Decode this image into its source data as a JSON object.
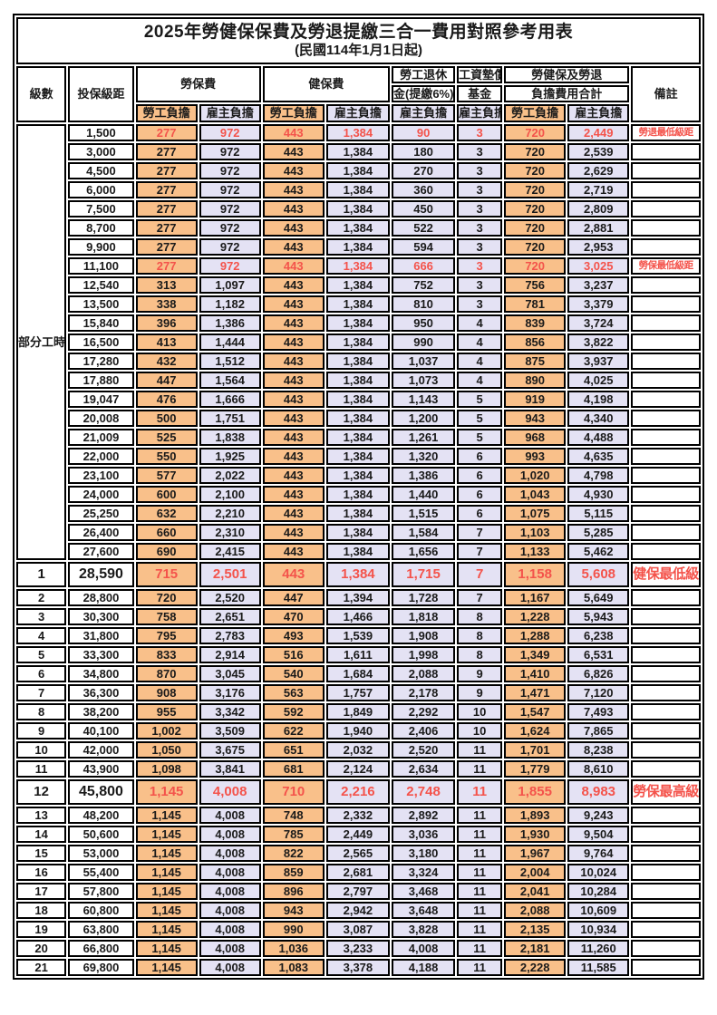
{
  "title": "2025年勞健保保費及勞退提繳三合一費用對照參考用表",
  "subtitle": "(民國114年1月1日起)",
  "colors": {
    "worker_bg": "#F9C08A",
    "employer_bg": "#E4E2F4",
    "highlight_red": "#F4534B",
    "border": "#000000"
  },
  "header": {
    "level": "級數",
    "bracket": "投保級距",
    "labor": "勞保費",
    "health": "健保費",
    "pension_l1": "勞工退休",
    "pension_l2": "金(提繳6%)",
    "fund_l1": "工資墊償",
    "fund_l2": "基金",
    "total_l1": "勞健保及勞退",
    "total_l2": "負擔費用合計",
    "remark": "備註",
    "worker": "勞工負擔",
    "employer": "雇主負擔"
  },
  "part_time": {
    "label": "部分工時",
    "span": 23
  },
  "rows": [
    {
      "level": "",
      "bracket": "1,500",
      "values": [
        "277",
        "972",
        "443",
        "1,384",
        "90",
        "3",
        "720",
        "2,449"
      ],
      "remark": "勞退最低級距",
      "red": true,
      "emph": false
    },
    {
      "level": "",
      "bracket": "3,000",
      "values": [
        "277",
        "972",
        "443",
        "1,384",
        "180",
        "3",
        "720",
        "2,539"
      ],
      "remark": "",
      "red": false,
      "emph": false
    },
    {
      "level": "",
      "bracket": "4,500",
      "values": [
        "277",
        "972",
        "443",
        "1,384",
        "270",
        "3",
        "720",
        "2,629"
      ],
      "remark": "",
      "red": false,
      "emph": false
    },
    {
      "level": "",
      "bracket": "6,000",
      "values": [
        "277",
        "972",
        "443",
        "1,384",
        "360",
        "3",
        "720",
        "2,719"
      ],
      "remark": "",
      "red": false,
      "emph": false
    },
    {
      "level": "",
      "bracket": "7,500",
      "values": [
        "277",
        "972",
        "443",
        "1,384",
        "450",
        "3",
        "720",
        "2,809"
      ],
      "remark": "",
      "red": false,
      "emph": false
    },
    {
      "level": "",
      "bracket": "8,700",
      "values": [
        "277",
        "972",
        "443",
        "1,384",
        "522",
        "3",
        "720",
        "2,881"
      ],
      "remark": "",
      "red": false,
      "emph": false
    },
    {
      "level": "",
      "bracket": "9,900",
      "values": [
        "277",
        "972",
        "443",
        "1,384",
        "594",
        "3",
        "720",
        "2,953"
      ],
      "remark": "",
      "red": false,
      "emph": false
    },
    {
      "level": "",
      "bracket": "11,100",
      "values": [
        "277",
        "972",
        "443",
        "1,384",
        "666",
        "3",
        "720",
        "3,025"
      ],
      "remark": "勞保最低級距",
      "red": true,
      "emph": false
    },
    {
      "level": "",
      "bracket": "12,540",
      "values": [
        "313",
        "1,097",
        "443",
        "1,384",
        "752",
        "3",
        "756",
        "3,237"
      ],
      "remark": "",
      "red": false,
      "emph": false
    },
    {
      "level": "",
      "bracket": "13,500",
      "values": [
        "338",
        "1,182",
        "443",
        "1,384",
        "810",
        "3",
        "781",
        "3,379"
      ],
      "remark": "",
      "red": false,
      "emph": false
    },
    {
      "level": "",
      "bracket": "15,840",
      "values": [
        "396",
        "1,386",
        "443",
        "1,384",
        "950",
        "4",
        "839",
        "3,724"
      ],
      "remark": "",
      "red": false,
      "emph": false
    },
    {
      "level": "",
      "bracket": "16,500",
      "values": [
        "413",
        "1,444",
        "443",
        "1,384",
        "990",
        "4",
        "856",
        "3,822"
      ],
      "remark": "",
      "red": false,
      "emph": false
    },
    {
      "level": "",
      "bracket": "17,280",
      "values": [
        "432",
        "1,512",
        "443",
        "1,384",
        "1,037",
        "4",
        "875",
        "3,937"
      ],
      "remark": "",
      "red": false,
      "emph": false
    },
    {
      "level": "",
      "bracket": "17,880",
      "values": [
        "447",
        "1,564",
        "443",
        "1,384",
        "1,073",
        "4",
        "890",
        "4,025"
      ],
      "remark": "",
      "red": false,
      "emph": false
    },
    {
      "level": "",
      "bracket": "19,047",
      "values": [
        "476",
        "1,666",
        "443",
        "1,384",
        "1,143",
        "5",
        "919",
        "4,198"
      ],
      "remark": "",
      "red": false,
      "emph": false
    },
    {
      "level": "",
      "bracket": "20,008",
      "values": [
        "500",
        "1,751",
        "443",
        "1,384",
        "1,200",
        "5",
        "943",
        "4,340"
      ],
      "remark": "",
      "red": false,
      "emph": false
    },
    {
      "level": "",
      "bracket": "21,009",
      "values": [
        "525",
        "1,838",
        "443",
        "1,384",
        "1,261",
        "5",
        "968",
        "4,488"
      ],
      "remark": "",
      "red": false,
      "emph": false
    },
    {
      "level": "",
      "bracket": "22,000",
      "values": [
        "550",
        "1,925",
        "443",
        "1,384",
        "1,320",
        "6",
        "993",
        "4,635"
      ],
      "remark": "",
      "red": false,
      "emph": false
    },
    {
      "level": "",
      "bracket": "23,100",
      "values": [
        "577",
        "2,022",
        "443",
        "1,384",
        "1,386",
        "6",
        "1,020",
        "4,798"
      ],
      "remark": "",
      "red": false,
      "emph": false
    },
    {
      "level": "",
      "bracket": "24,000",
      "values": [
        "600",
        "2,100",
        "443",
        "1,384",
        "1,440",
        "6",
        "1,043",
        "4,930"
      ],
      "remark": "",
      "red": false,
      "emph": false
    },
    {
      "level": "",
      "bracket": "25,250",
      "values": [
        "632",
        "2,210",
        "443",
        "1,384",
        "1,515",
        "6",
        "1,075",
        "5,115"
      ],
      "remark": "",
      "red": false,
      "emph": false
    },
    {
      "level": "",
      "bracket": "26,400",
      "values": [
        "660",
        "2,310",
        "443",
        "1,384",
        "1,584",
        "7",
        "1,103",
        "5,285"
      ],
      "remark": "",
      "red": false,
      "emph": false
    },
    {
      "level": "",
      "bracket": "27,600",
      "values": [
        "690",
        "2,415",
        "443",
        "1,384",
        "1,656",
        "7",
        "1,133",
        "5,462"
      ],
      "remark": "",
      "red": false,
      "emph": false
    },
    {
      "level": "1",
      "bracket": "28,590",
      "values": [
        "715",
        "2,501",
        "443",
        "1,384",
        "1,715",
        "7",
        "1,158",
        "5,608"
      ],
      "remark": "健保最低級距",
      "red": true,
      "emph": true
    },
    {
      "level": "2",
      "bracket": "28,800",
      "values": [
        "720",
        "2,520",
        "447",
        "1,394",
        "1,728",
        "7",
        "1,167",
        "5,649"
      ],
      "remark": "",
      "red": false,
      "emph": false
    },
    {
      "level": "3",
      "bracket": "30,300",
      "values": [
        "758",
        "2,651",
        "470",
        "1,466",
        "1,818",
        "8",
        "1,228",
        "5,943"
      ],
      "remark": "",
      "red": false,
      "emph": false
    },
    {
      "level": "4",
      "bracket": "31,800",
      "values": [
        "795",
        "2,783",
        "493",
        "1,539",
        "1,908",
        "8",
        "1,288",
        "6,238"
      ],
      "remark": "",
      "red": false,
      "emph": false
    },
    {
      "level": "5",
      "bracket": "33,300",
      "values": [
        "833",
        "2,914",
        "516",
        "1,611",
        "1,998",
        "8",
        "1,349",
        "6,531"
      ],
      "remark": "",
      "red": false,
      "emph": false
    },
    {
      "level": "6",
      "bracket": "34,800",
      "values": [
        "870",
        "3,045",
        "540",
        "1,684",
        "2,088",
        "9",
        "1,410",
        "6,826"
      ],
      "remark": "",
      "red": false,
      "emph": false
    },
    {
      "level": "7",
      "bracket": "36,300",
      "values": [
        "908",
        "3,176",
        "563",
        "1,757",
        "2,178",
        "9",
        "1,471",
        "7,120"
      ],
      "remark": "",
      "red": false,
      "emph": false
    },
    {
      "level": "8",
      "bracket": "38,200",
      "values": [
        "955",
        "3,342",
        "592",
        "1,849",
        "2,292",
        "10",
        "1,547",
        "7,493"
      ],
      "remark": "",
      "red": false,
      "emph": false
    },
    {
      "level": "9",
      "bracket": "40,100",
      "values": [
        "1,002",
        "3,509",
        "622",
        "1,940",
        "2,406",
        "10",
        "1,624",
        "7,865"
      ],
      "remark": "",
      "red": false,
      "emph": false
    },
    {
      "level": "10",
      "bracket": "42,000",
      "values": [
        "1,050",
        "3,675",
        "651",
        "2,032",
        "2,520",
        "11",
        "1,701",
        "8,238"
      ],
      "remark": "",
      "red": false,
      "emph": false
    },
    {
      "level": "11",
      "bracket": "43,900",
      "values": [
        "1,098",
        "3,841",
        "681",
        "2,124",
        "2,634",
        "11",
        "1,779",
        "8,610"
      ],
      "remark": "",
      "red": false,
      "emph": false
    },
    {
      "level": "12",
      "bracket": "45,800",
      "values": [
        "1,145",
        "4,008",
        "710",
        "2,216",
        "2,748",
        "11",
        "1,855",
        "8,983"
      ],
      "remark": "勞保最高級距",
      "red": true,
      "emph": true
    },
    {
      "level": "13",
      "bracket": "48,200",
      "values": [
        "1,145",
        "4,008",
        "748",
        "2,332",
        "2,892",
        "11",
        "1,893",
        "9,243"
      ],
      "remark": "",
      "red": false,
      "emph": false
    },
    {
      "level": "14",
      "bracket": "50,600",
      "values": [
        "1,145",
        "4,008",
        "785",
        "2,449",
        "3,036",
        "11",
        "1,930",
        "9,504"
      ],
      "remark": "",
      "red": false,
      "emph": false
    },
    {
      "level": "15",
      "bracket": "53,000",
      "values": [
        "1,145",
        "4,008",
        "822",
        "2,565",
        "3,180",
        "11",
        "1,967",
        "9,764"
      ],
      "remark": "",
      "red": false,
      "emph": false
    },
    {
      "level": "16",
      "bracket": "55,400",
      "values": [
        "1,145",
        "4,008",
        "859",
        "2,681",
        "3,324",
        "11",
        "2,004",
        "10,024"
      ],
      "remark": "",
      "red": false,
      "emph": false
    },
    {
      "level": "17",
      "bracket": "57,800",
      "values": [
        "1,145",
        "4,008",
        "896",
        "2,797",
        "3,468",
        "11",
        "2,041",
        "10,284"
      ],
      "remark": "",
      "red": false,
      "emph": false
    },
    {
      "level": "18",
      "bracket": "60,800",
      "values": [
        "1,145",
        "4,008",
        "943",
        "2,942",
        "3,648",
        "11",
        "2,088",
        "10,609"
      ],
      "remark": "",
      "red": false,
      "emph": false
    },
    {
      "level": "19",
      "bracket": "63,800",
      "values": [
        "1,145",
        "4,008",
        "990",
        "3,087",
        "3,828",
        "11",
        "2,135",
        "10,934"
      ],
      "remark": "",
      "red": false,
      "emph": false
    },
    {
      "level": "20",
      "bracket": "66,800",
      "values": [
        "1,145",
        "4,008",
        "1,036",
        "3,233",
        "4,008",
        "11",
        "2,181",
        "11,260"
      ],
      "remark": "",
      "red": false,
      "emph": false
    },
    {
      "level": "21",
      "bracket": "69,800",
      "values": [
        "1,145",
        "4,008",
        "1,083",
        "3,378",
        "4,188",
        "11",
        "2,228",
        "11,585"
      ],
      "remark": "",
      "red": false,
      "emph": false
    }
  ]
}
